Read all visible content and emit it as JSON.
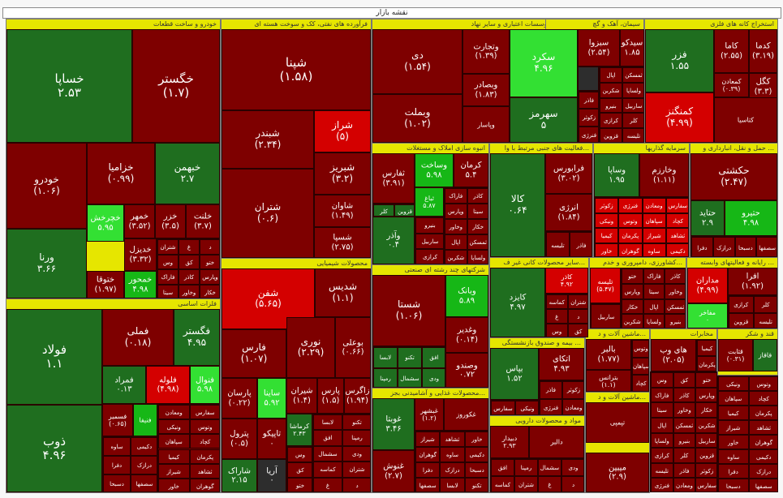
{
  "map_title": "نقشه بازار",
  "colors": {
    "dark_red": "#7e0000",
    "red": "#d40000",
    "dark_green": "#1f6e1f",
    "green": "#16b716",
    "light_green": "#33e033",
    "neutral": "#2d2d2d",
    "sector_header": "#e6e600"
  },
  "sectors": {
    "s1": "خودرو و ساخت قطعات",
    "s2": "فرآورده های نفتی، کک و سوخت هسته ای",
    "s3": "بانک ها، موسسات اعتباری و سایر نهاد...",
    "s4": "سیمان، آهک و گچ",
    "s5": "استخراج کانه های فلزی",
    "s6": "فلزات اساسی",
    "s7": "محصولات شیمیایی",
    "s8": "انبوه سازی املاک و مستغلات",
    "s9": "فعالیت های جنبی مرتبط با وا...",
    "s10": "سرمایه گذاریها",
    "s11": "حمل و نقل، انبارداری و ...",
    "s12": "شرکتهای چند رشته ای صنعتی",
    "s13": "سایر محصولات کانی غیر ف...",
    "s14": "رایانه و فعالیتهای وابسته ...",
    "s15": "کشاورزی، دامپروری و خدم...",
    "s16": "ماشین آلات و د...",
    "s17": "مخابرات",
    "s18": "قند و شکر",
    "s19": "بیمه و صندوق بازنشستگی ...",
    "s20": "محصولات غذایی و آشامیدنی بجز...",
    "s21": "مواد و محصولات دارویی",
    "s22": "ماشین آلات و د..."
  },
  "tiles": {
    "khsapa": {
      "name": "خساپا",
      "value": "۲.۵۳"
    },
    "khgostar": {
      "name": "خگستر",
      "value": "(۱.۷)"
    },
    "khodro": {
      "name": "خودرو",
      "value": "(۱.۰۶)"
    },
    "khzamia": {
      "name": "خزامیا",
      "value": "(۰.۹۹)"
    },
    "kheyhaman": {
      "name": "خبهمن",
      "value": "۲.۷"
    },
    "varna": {
      "name": "ورنا",
      "value": "۳.۶۶"
    },
    "khcharkh": {
      "name": "خچرخش",
      "value": "۵.۹۵"
    },
    "khmhor": {
      "name": "خمهر",
      "value": "(۳.۵۲)"
    },
    "khzar": {
      "name": "خزر",
      "value": "(۳.۵)"
    },
    "khlent": {
      "name": "خلنت",
      "value": "(۳.۷)"
    },
    "khdizel": {
      "name": "خدیزل",
      "value": "(۳.۳۲)"
    },
    "khtogha": {
      "name": "ختوقا",
      "value": "(۱.۹۷)"
    },
    "khmehvar": {
      "name": "خمحور",
      "value": "۴.۹۸"
    },
    "shepna": {
      "name": "شپنا",
      "value": "(۱.۵۸)"
    },
    "shebandar": {
      "name": "شبندر",
      "value": "(۲.۳۴)"
    },
    "sheraz": {
      "name": "شراز",
      "value": "(۵)"
    },
    "sheriz": {
      "name": "شبریز",
      "value": "(۳.۲)"
    },
    "shetran": {
      "name": "شتران",
      "value": "(۰.۶)"
    },
    "shavan": {
      "name": "شاوان",
      "value": "(۱.۴۹)"
    },
    "shesepa": {
      "name": "شسپا",
      "value": "(۲.۷۵)"
    },
    "dey": {
      "name": "دی",
      "value": "(۱.۵۴)"
    },
    "vtejarat": {
      "name": "وتجارت",
      "value": "(۱.۳۹)"
    },
    "vbsader": {
      "name": "وبصادر",
      "value": "(۱.۸۳)"
    },
    "vbemellat": {
      "name": "وبملت",
      "value": "(۱.۰۲)"
    },
    "vpasar": {
      "name": "وپاسار",
      "value": ""
    },
    "sekord": {
      "name": "سکرد",
      "value": "۴.۹۶"
    },
    "sehormoz": {
      "name": "سهرمز",
      "value": "۵"
    },
    "sebzva": {
      "name": "سبزوا",
      "value": "(۲.۵۴)"
    },
    "sidko": {
      "name": "سیدکو",
      "value": "۱.۸۵"
    },
    "fazar": {
      "name": "فزر",
      "value": "۱.۵۵"
    },
    "kama": {
      "name": "کاما",
      "value": "(۲.۵۵)"
    },
    "kadema": {
      "name": "کدما",
      "value": "(۳.۱۹)"
    },
    "kmoaden": {
      "name": "کمعادن",
      "value": "(۰.۳۹)"
    },
    "kgol": {
      "name": "کگل",
      "value": "(۳.۳)"
    },
    "kmangenz": {
      "name": "کمنگنز",
      "value": "(۴.۹۹)"
    },
    "ktasia": {
      "name": "کتاسیا",
      "value": ""
    },
    "folad": {
      "name": "فولاد",
      "value": "۱.۱"
    },
    "femeli": {
      "name": "فملی",
      "value": "(۰.۱۸)"
    },
    "fegostar": {
      "name": "فگستر",
      "value": "۴.۹۵"
    },
    "femrad": {
      "name": "فمراد",
      "value": "۰.۱۳"
    },
    "foleh": {
      "name": "فلوله",
      "value": "(۴.۹۸)"
    },
    "fenvel": {
      "name": "فنوال",
      "value": "۵.۹۸"
    },
    "zob": {
      "name": "ذوب",
      "value": "۴.۹۶"
    },
    "fesami": {
      "name": "فسمیر",
      "value": "(۰.۶۵)"
    },
    "fenifa": {
      "name": "فنیفا",
      "value": ""
    },
    "shefan": {
      "name": "شفن",
      "value": "(۵.۶۵)"
    },
    "shedis": {
      "name": "شدیس",
      "value": "(۱.۱)"
    },
    "fares": {
      "name": "فارس",
      "value": "(۱.۰۷)"
    },
    "nori": {
      "name": "نوری",
      "value": "(۲.۲۹)"
    },
    "boali": {
      "name": "بوعلی",
      "value": "(۰.۶۶)"
    },
    "parsan": {
      "name": "پارسان",
      "value": "(۰.۲۲)"
    },
    "sayna": {
      "name": "ساینا",
      "value": "۵.۹۲"
    },
    "shiran": {
      "name": "شیران",
      "value": "(۱.۴)"
    },
    "pars": {
      "name": "پارس",
      "value": "(۱.۵)"
    },
    "zagros": {
      "name": "زاگرس",
      "value": "(۱.۹۴)"
    },
    "petrol": {
      "name": "پترول",
      "value": "(۰.۵)"
    },
    "taypiko": {
      "name": "تاپیکو",
      "value": "۰"
    },
    "kermasha": {
      "name": "کرماشا",
      "value": "۲.۴۳"
    },
    "sharak": {
      "name": "شاراک",
      "value": "۲.۱۵"
    },
    "arya": {
      "name": "آریا",
      "value": "۰"
    },
    "tafars": {
      "name": "ثفارس",
      "value": "(۳.۹۱)"
    },
    "vsakht": {
      "name": "وساخت",
      "value": "۵.۹۸"
    },
    "kerman": {
      "name": "کرمان",
      "value": "۵.۴"
    },
    "tbagh": {
      "name": "ثباغ",
      "value": "۵.۸۷"
    },
    "vazar": {
      "name": "وآذر",
      "value": "۰.۴"
    },
    "kala": {
      "name": "کالا",
      "value": "۰.۶۴"
    },
    "faraboors": {
      "name": "فرابورس",
      "value": "(۳.۰۲)"
    },
    "anerji": {
      "name": "انرژی",
      "value": "(۱.۸۴)"
    },
    "vsapa": {
      "name": "وساپا",
      "value": "۱.۹۵"
    },
    "vkharazm": {
      "name": "وخارزم",
      "value": "(۱.۱۱)"
    },
    "hkeshti": {
      "name": "حکشتی",
      "value": "(۲.۴۷)"
    },
    "hetayed": {
      "name": "حتاید",
      "value": "۲.۹"
    },
    "hetiro": {
      "name": "حتیرو",
      "value": "۴.۹۸"
    },
    "shasta": {
      "name": "شستا",
      "value": "(۱.۰۶)"
    },
    "vbank": {
      "name": "وبانک",
      "value": "۵.۸۹"
    },
    "vghadir": {
      "name": "وغدیر",
      "value": "(۰.۱۴)"
    },
    "vsandoq": {
      "name": "وصندو",
      "value": "۰.۷۲"
    },
    "kapars": {
      "name": "کپارس",
      "value": ""
    },
    "kaniz": {
      "name": "کایزد",
      "value": "۴.۹۷"
    },
    "kazar": {
      "name": "کاذر",
      "value": "۴.۹۲"
    },
    "tlisheh": {
      "name": "تلیسه",
      "value": "(۵.۴۷)"
    },
    "madaran": {
      "name": "مداران",
      "value": "(۴.۹۹)"
    },
    "afra": {
      "name": "افرا",
      "value": "(۱.۹۲)"
    },
    "mafakher": {
      "name": "مفاخر",
      "value": "۰"
    },
    "bapas": {
      "name": "بپاس",
      "value": "۱.۵۲"
    },
    "ataki": {
      "name": "اتکای",
      "value": "۴.۹۳"
    },
    "balber": {
      "name": "بالبر",
      "value": "(۱.۷۷)"
    },
    "betranas": {
      "name": "بترانس",
      "value": "(۱.۱)"
    },
    "hayweb": {
      "name": "های وب",
      "value": "(۲.۰۵)"
    },
    "ghasem": {
      "name": "قثابت",
      "value": "(۰.۳۱)"
    },
    "ghaghaz": {
      "name": "قاقاز",
      "value": ""
    },
    "ghoreba": {
      "name": "غوبتا",
      "value": "۳.۴۶"
    },
    "ghoesh": {
      "name": "غنوش",
      "value": "(۲.۷)"
    },
    "ghbeshahr": {
      "name": "غبشهر",
      "value": "(۱.۲)"
    },
    "ghkoroz": {
      "name": "غکوروز",
      "value": ""
    },
    "dabidar": {
      "name": "دبیدار",
      "value": "۲.۹۳"
    },
    "dalber": {
      "name": "دالبر",
      "value": ""
    },
    "tayped": {
      "name": "تپمپی",
      "value": ""
    },
    "mibin": {
      "name": "میبین",
      "value": "(۲.۹)"
    }
  },
  "noise_text": [
    "شتران",
    "غ",
    "د",
    "وس",
    "کق",
    "ختو",
    "فاراک",
    "کاذر",
    "وپارس",
    "سیتا",
    "وخاور",
    "خکار",
    "اپال",
    "ثمسکن",
    "شکربن",
    "ولساپا",
    "بنیرو",
    "ساربیل",
    "کرازی",
    "کلر",
    "قزوین",
    "تلیسه",
    "فاذر",
    "زکوثر",
    "فنرژی",
    "ومعادن",
    "سفارس",
    "ونیکی",
    "وتوس",
    "سپاهان",
    "کچاد",
    "کیمیا",
    "پکرمان",
    "شیراز",
    "ثشاهد",
    "خاور",
    "گوهران",
    "ساوه",
    "دکیمی",
    "دفرا",
    "درازک",
    "دسبحا",
    "سصفها",
    "لابسا",
    "تکنو",
    "افق",
    "رمپنا",
    "سشمال",
    "ودی",
    "کماسه"
  ]
}
